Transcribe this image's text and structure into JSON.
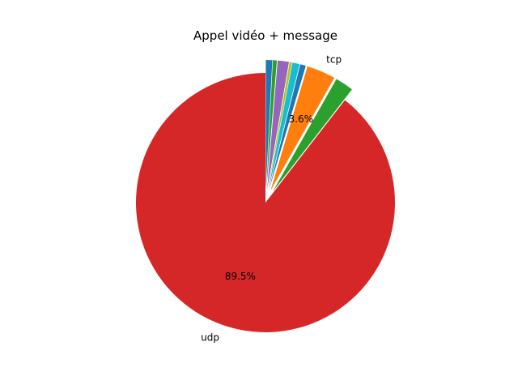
{
  "chart_data": {
    "type": "pie",
    "title": "Appel vidéo + message",
    "start_angle_deg": 90,
    "direction": "counterclockwise",
    "slices": [
      {
        "label": "udp",
        "value": 89.5,
        "pct_label": "89.5%",
        "color": "#d62728",
        "explode": 0
      },
      {
        "label": "",
        "value": 2.3,
        "pct_label": "",
        "color": "#2ca02c",
        "explode": 0.1
      },
      {
        "label": "tcp",
        "value": 3.6,
        "pct_label": "3.6%",
        "color": "#ff7f0e",
        "explode": 0.1
      },
      {
        "label": "",
        "value": 0.7,
        "pct_label": "",
        "color": "#1f77b4",
        "explode": 0.1
      },
      {
        "label": "",
        "value": 0.9,
        "pct_label": "",
        "color": "#17becf",
        "explode": 0.1
      },
      {
        "label": "",
        "value": 0.3,
        "pct_label": "",
        "color": "#bcbd22",
        "explode": 0.1
      },
      {
        "label": "",
        "value": 1.4,
        "pct_label": "",
        "color": "#9467bd",
        "explode": 0.1
      },
      {
        "label": "",
        "value": 0.5,
        "pct_label": "",
        "color": "#2ca02c",
        "explode": 0.1
      },
      {
        "label": "",
        "value": 0.8,
        "pct_label": "",
        "color": "#1f77b4",
        "explode": 0.1
      }
    ]
  }
}
